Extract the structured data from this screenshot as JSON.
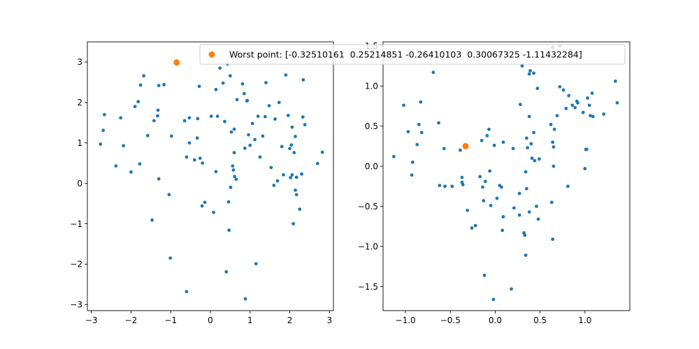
{
  "chart_data": [
    {
      "type": "scatter",
      "xlim": [
        -3.1,
        3.1
      ],
      "ylim": [
        -3.15,
        3.5
      ],
      "xticks": [
        -3,
        -2,
        -1,
        0,
        1,
        2,
        3
      ],
      "yticks": [
        -3,
        -2,
        -1,
        0,
        1,
        2,
        3
      ],
      "xtick_labels": [
        "−3",
        "−2",
        "−1",
        "0",
        "1",
        "2",
        "3"
      ],
      "ytick_labels": [
        "−3",
        "−2",
        "−1",
        "0",
        "1",
        "2",
        "3"
      ],
      "grid": false,
      "series": [
        {
          "color": "#1f77b4",
          "marker_size": "small",
          "points": [
            [
              -2.77,
              0.97
            ],
            [
              -2.7,
              1.31
            ],
            [
              -2.67,
              1.7
            ],
            [
              -2.38,
              0.43
            ],
            [
              -2.26,
              1.62
            ],
            [
              -2.19,
              0.93
            ],
            [
              -2.0,
              0.28
            ],
            [
              -1.9,
              1.9
            ],
            [
              -1.82,
              2.02
            ],
            [
              -1.78,
              0.48
            ],
            [
              -1.76,
              2.43
            ],
            [
              -1.68,
              2.66
            ],
            [
              -1.58,
              1.18
            ],
            [
              -1.47,
              -0.91
            ],
            [
              -1.42,
              1.55
            ],
            [
              -1.33,
              1.67
            ],
            [
              -1.32,
              1.81
            ],
            [
              -1.3,
              2.42
            ],
            [
              -1.3,
              0.11
            ],
            [
              -1.17,
              2.44
            ],
            [
              -1.04,
              -0.28
            ],
            [
              -1.01,
              -1.85
            ],
            [
              -0.98,
              1.17
            ],
            [
              -0.65,
              1.55
            ],
            [
              -0.6,
              -2.68
            ],
            [
              -0.6,
              0.65
            ],
            [
              -0.53,
              1.62
            ],
            [
              -0.53,
              1.0
            ],
            [
              -0.4,
              0.58
            ],
            [
              -0.33,
              1.12
            ],
            [
              -0.32,
              1.6
            ],
            [
              -0.28,
              2.4
            ],
            [
              -0.26,
              0.62
            ],
            [
              -0.21,
              -0.56
            ],
            [
              -0.2,
              0.5
            ],
            [
              -0.14,
              -0.47
            ],
            [
              0.02,
              1.66
            ],
            [
              0.08,
              -0.72
            ],
            [
              0.14,
              2.32
            ],
            [
              0.14,
              0.29
            ],
            [
              0.18,
              1.66
            ],
            [
              0.24,
              2.85
            ],
            [
              0.32,
              2.48
            ],
            [
              0.36,
              1.53
            ],
            [
              0.4,
              -2.19
            ],
            [
              0.43,
              2.95
            ],
            [
              0.46,
              -0.46
            ],
            [
              0.47,
              -1.16
            ],
            [
              0.5,
              2.66
            ],
            [
              0.51,
              -0.1
            ],
            [
              0.53,
              1.27
            ],
            [
              0.56,
              0.43
            ],
            [
              0.58,
              0.33
            ],
            [
              0.6,
              1.34
            ],
            [
              0.6,
              0.76
            ],
            [
              0.61,
              0.17
            ],
            [
              0.65,
              0.1
            ],
            [
              0.67,
              2.07
            ],
            [
              0.81,
              2.46
            ],
            [
              0.85,
              2.22
            ],
            [
              0.87,
              0.87
            ],
            [
              0.88,
              -2.86
            ],
            [
              0.92,
              2.04
            ],
            [
              0.93,
              2.05
            ],
            [
              0.96,
              1.2
            ],
            [
              1.0,
              0.94
            ],
            [
              1.06,
              1.48
            ],
            [
              1.12,
              1.08
            ],
            [
              1.15,
              -1.99
            ],
            [
              1.2,
              1.66
            ],
            [
              1.25,
              0.65
            ],
            [
              1.32,
              1.17
            ],
            [
              1.38,
              1.65
            ],
            [
              1.4,
              2.49
            ],
            [
              1.48,
              1.92
            ],
            [
              1.53,
              0.39
            ],
            [
              1.6,
              -0.05
            ],
            [
              1.63,
              1.59
            ],
            [
              1.69,
              0.06
            ],
            [
              1.73,
              2.0
            ],
            [
              1.8,
              0.91
            ],
            [
              1.84,
              0.21
            ],
            [
              1.9,
              2.68
            ],
            [
              1.96,
              1.68
            ],
            [
              2.0,
              0.86
            ],
            [
              2.02,
              0.14
            ],
            [
              2.04,
              0.95
            ],
            [
              2.06,
              0.21
            ],
            [
              2.06,
              1.39
            ],
            [
              2.09,
              -1.0
            ],
            [
              2.11,
              0.76
            ],
            [
              2.14,
              1.16
            ],
            [
              2.14,
              -0.17
            ],
            [
              2.17,
              0.15
            ],
            [
              2.17,
              -0.28
            ],
            [
              2.25,
              -0.64
            ],
            [
              2.3,
              0.23
            ],
            [
              2.33,
              1.64
            ],
            [
              2.34,
              2.56
            ],
            [
              2.38,
              1.45
            ],
            [
              2.7,
              0.49
            ],
            [
              2.82,
              0.77
            ]
          ]
        },
        {
          "color": "#ff7f0e",
          "marker_size": "large",
          "points": [
            [
              -0.85,
              2.99
            ]
          ]
        }
      ]
    },
    {
      "type": "scatter",
      "xlim": [
        -1.25,
        1.5
      ],
      "ylim": [
        -1.8,
        1.55
      ],
      "xticks": [
        -1.0,
        -0.5,
        0.0,
        0.5,
        1.0
      ],
      "yticks": [
        -1.5,
        -1.0,
        -0.5,
        0.0,
        0.5,
        1.0,
        1.5
      ],
      "xtick_labels": [
        "−1.0",
        "−0.5",
        "0.0",
        "0.5",
        "1.0"
      ],
      "ytick_labels": [
        "−1.5",
        "−1.0",
        "−0.5",
        "0.0",
        "0.5",
        "1.0",
        "1.5"
      ],
      "grid": false,
      "series": [
        {
          "color": "#1f77b4",
          "marker_size": "small",
          "points": [
            [
              -1.13,
              0.12
            ],
            [
              -1.02,
              0.76
            ],
            [
              -0.97,
              0.43
            ],
            [
              -0.93,
              -0.11
            ],
            [
              -0.92,
              0.05
            ],
            [
              -0.87,
              0.27
            ],
            [
              -0.85,
              0.52
            ],
            [
              -0.83,
              0.8
            ],
            [
              -0.82,
              0.42
            ],
            [
              -0.69,
              1.17
            ],
            [
              -0.63,
              0.54
            ],
            [
              -0.62,
              -0.24
            ],
            [
              -0.57,
              0.22
            ],
            [
              -0.56,
              -0.25
            ],
            [
              -0.48,
              -0.25
            ],
            [
              -0.39,
              0.2
            ],
            [
              -0.37,
              -0.2
            ],
            [
              -0.37,
              -0.14
            ],
            [
              -0.36,
              -0.23
            ],
            [
              -0.31,
              -0.55
            ],
            [
              -0.26,
              -0.77
            ],
            [
              -0.22,
              -0.74
            ],
            [
              -0.17,
              -0.13
            ],
            [
              -0.15,
              0.32
            ],
            [
              -0.14,
              -0.26
            ],
            [
              -0.13,
              -0.43
            ],
            [
              -0.12,
              -1.36
            ],
            [
              -0.11,
              -0.19
            ],
            [
              -0.09,
              0.38
            ],
            [
              -0.07,
              0.46
            ],
            [
              -0.06,
              -0.06
            ],
            [
              -0.05,
              -0.49
            ],
            [
              -0.02,
              -1.66
            ],
            [
              -0.01,
              0.26
            ],
            [
              0.02,
              -0.4
            ],
            [
              0.05,
              -0.24
            ],
            [
              0.07,
              -0.26
            ],
            [
              0.08,
              -0.8
            ],
            [
              0.09,
              -0.63
            ],
            [
              0.09,
              0.3
            ],
            [
              0.18,
              -1.53
            ],
            [
              0.2,
              0.22
            ],
            [
              0.21,
              -0.52
            ],
            [
              0.27,
              -0.34
            ],
            [
              0.27,
              -0.61
            ],
            [
              0.28,
              0.77
            ],
            [
              0.3,
              1.25
            ],
            [
              0.32,
              -0.83
            ],
            [
              0.33,
              -0.86
            ],
            [
              0.34,
              -1.11
            ],
            [
              0.34,
              -0.07
            ],
            [
              0.35,
              0.35
            ],
            [
              0.35,
              -0.28
            ],
            [
              0.36,
              0.23
            ],
            [
              0.38,
              1.15
            ],
            [
              0.38,
              0.62
            ],
            [
              0.38,
              -0.57
            ],
            [
              0.39,
              1.19
            ],
            [
              0.4,
              0.28
            ],
            [
              0.41,
              0.1
            ],
            [
              0.43,
              0.42
            ],
            [
              0.43,
              1.16
            ],
            [
              0.44,
              0.07
            ],
            [
              0.46,
              -0.5
            ],
            [
              0.47,
              0.97
            ],
            [
              0.48,
              -0.66
            ],
            [
              0.49,
              0.09
            ],
            [
              0.62,
              0.52
            ],
            [
              0.63,
              -0.45
            ],
            [
              0.64,
              1.48
            ],
            [
              0.64,
              0.3
            ],
            [
              0.64,
              -0.91
            ],
            [
              0.65,
              0.0
            ],
            [
              0.65,
              0.24
            ],
            [
              0.66,
              0.46
            ],
            [
              0.69,
              0.63
            ],
            [
              0.72,
              1.5
            ],
            [
              0.72,
              0.99
            ],
            [
              0.76,
              0.95
            ],
            [
              0.79,
              0.72
            ],
            [
              0.81,
              -0.25
            ],
            [
              0.82,
              0.88
            ],
            [
              0.84,
              1.44
            ],
            [
              0.86,
              0.76
            ],
            [
              0.89,
              0.73
            ],
            [
              0.91,
              0.81
            ],
            [
              0.92,
              0.79
            ],
            [
              0.98,
              0.67
            ],
            [
              1.0,
              -0.03
            ],
            [
              1.01,
              0.21
            ],
            [
              1.02,
              0.21
            ],
            [
              1.03,
              0.85
            ],
            [
              1.05,
              0.76
            ],
            [
              1.06,
              0.63
            ],
            [
              1.08,
              0.91
            ],
            [
              1.09,
              0.62
            ],
            [
              1.21,
              0.65
            ],
            [
              1.34,
              1.06
            ],
            [
              1.36,
              0.79
            ]
          ]
        },
        {
          "color": "#ff7f0e",
          "marker_size": "large",
          "points": [
            [
              -0.33,
              0.25
            ]
          ]
        }
      ]
    }
  ],
  "legend": {
    "text": "Worst point: [-0.32510161  0.25214851 -0.26410103  0.30067325 -1.11432284]",
    "marker_color": "#ff7f0e",
    "placement": "top-right"
  }
}
